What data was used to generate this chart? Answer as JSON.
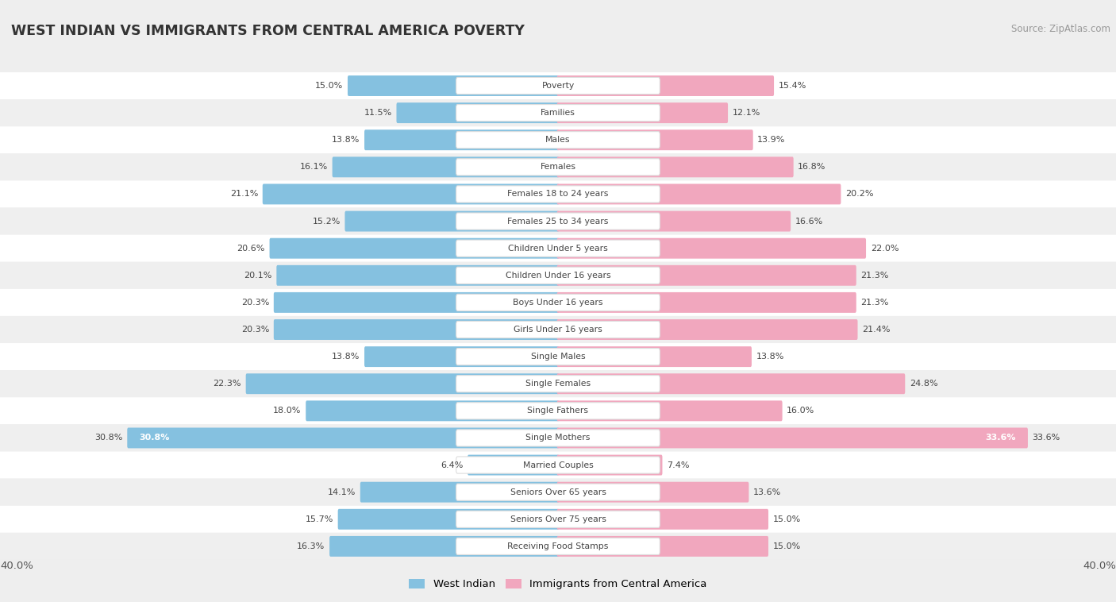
{
  "title": "WEST INDIAN VS IMMIGRANTS FROM CENTRAL AMERICA POVERTY",
  "source": "Source: ZipAtlas.com",
  "categories": [
    "Poverty",
    "Families",
    "Males",
    "Females",
    "Females 18 to 24 years",
    "Females 25 to 34 years",
    "Children Under 5 years",
    "Children Under 16 years",
    "Boys Under 16 years",
    "Girls Under 16 years",
    "Single Males",
    "Single Females",
    "Single Fathers",
    "Single Mothers",
    "Married Couples",
    "Seniors Over 65 years",
    "Seniors Over 75 years",
    "Receiving Food Stamps"
  ],
  "west_indian": [
    15.0,
    11.5,
    13.8,
    16.1,
    21.1,
    15.2,
    20.6,
    20.1,
    20.3,
    20.3,
    13.8,
    22.3,
    18.0,
    30.8,
    6.4,
    14.1,
    15.7,
    16.3
  ],
  "central_america": [
    15.4,
    12.1,
    13.9,
    16.8,
    20.2,
    16.6,
    22.0,
    21.3,
    21.3,
    21.4,
    13.8,
    24.8,
    16.0,
    33.6,
    7.4,
    13.6,
    15.0,
    15.0
  ],
  "axis_max": 40.0,
  "blue_color": "#85C1E0",
  "pink_color": "#F1A7BE",
  "bg_white": "#FFFFFF",
  "bg_gray": "#EFEFEF"
}
